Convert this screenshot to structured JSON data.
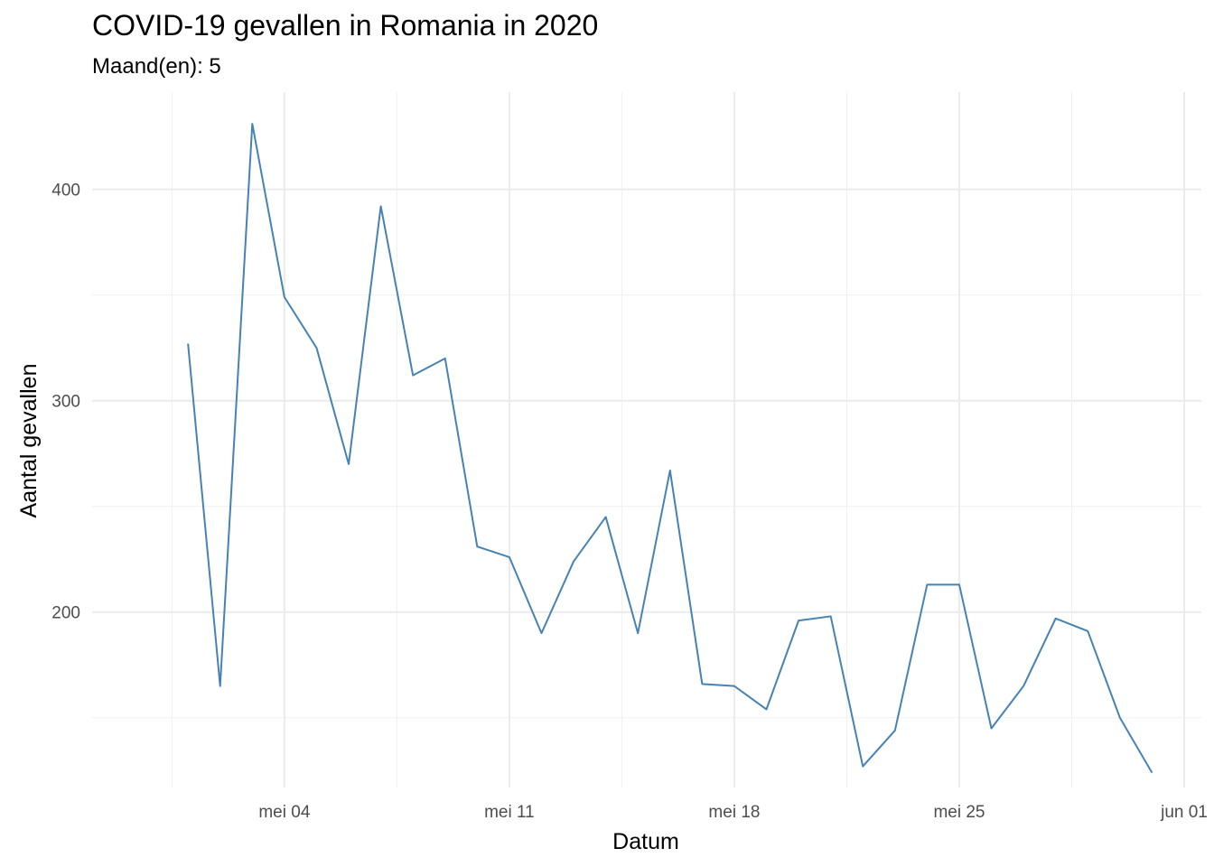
{
  "chart_data": {
    "type": "line",
    "title": "COVID-19 gevallen in Romania in 2020",
    "subtitle": "Maand(en): 5",
    "xlabel": "Datum",
    "ylabel": "Aantal gevallen",
    "x_ticks": [
      "mei 04",
      "mei 11",
      "mei 18",
      "mei 25",
      "jun 01"
    ],
    "y_ticks": [
      "200",
      "300",
      "400"
    ],
    "y_tick_values": [
      200,
      300,
      400
    ],
    "ylim": [
      117,
      446
    ],
    "xlim": [
      "2020-04-29",
      "2020-06-01"
    ],
    "grid": true,
    "line_color": "#4682B4",
    "series": [
      {
        "x": [
          "2020-05-01",
          "2020-05-02",
          "2020-05-03",
          "2020-05-04",
          "2020-05-05",
          "2020-05-06",
          "2020-05-07",
          "2020-05-08",
          "2020-05-09",
          "2020-05-10",
          "2020-05-11",
          "2020-05-12",
          "2020-05-13",
          "2020-05-14",
          "2020-05-15",
          "2020-05-16",
          "2020-05-17",
          "2020-05-18",
          "2020-05-19",
          "2020-05-20",
          "2020-05-21",
          "2020-05-22",
          "2020-05-23",
          "2020-05-24",
          "2020-05-25",
          "2020-05-26",
          "2020-05-27",
          "2020-05-28",
          "2020-05-29",
          "2020-05-30",
          "2020-05-31"
        ],
        "values": [
          327,
          165,
          431,
          349,
          325,
          270,
          392,
          312,
          320,
          231,
          226,
          190,
          224,
          245,
          190,
          267,
          166,
          165,
          154,
          196,
          198,
          127,
          144,
          213,
          213,
          145,
          165,
          197,
          191,
          150,
          124
        ]
      }
    ]
  }
}
